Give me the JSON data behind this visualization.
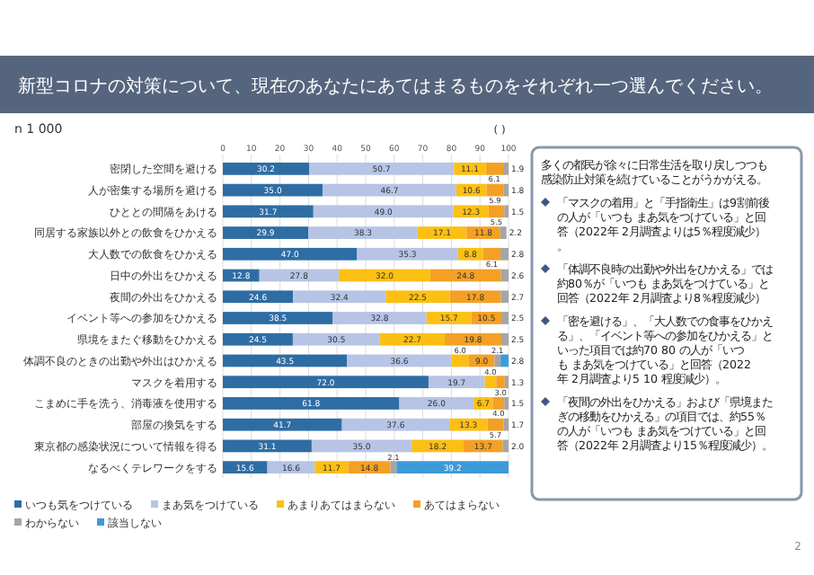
{
  "chart_data": {
    "type": "bar",
    "orientation": "horizontal",
    "stacked": true,
    "grid": "x",
    "legend": "bottom",
    "title": "新型コロナの対策について、現在のあなたにあてはまるものをそれぞれ一つ選んでください。",
    "subtitle": "n 1 000",
    "xlabel": "( )",
    "xlim": [
      0,
      100
    ],
    "xticks": [
      0,
      10,
      20,
      30,
      40,
      50,
      60,
      70,
      80,
      90,
      100
    ],
    "categories": [
      "密閉した空間を避ける",
      "人が密集する場所を避ける",
      "ひととの間隔をあける",
      "同居する家族以外との飲食をひかえる",
      "大人数での飲食をひかえる",
      "日中の外出をひかえる",
      "夜間の外出をひかえる",
      "イベント等への参加をひかえる",
      "県境をまたぐ移動をひかえる",
      "体調不良のときの出勤や外出はひかえる",
      "マスクを着用する",
      "こまめに手を洗う、消毒液を使用する",
      "部屋の換気をする",
      "東京都の感染状況について情報を得る",
      "なるべくテレワークをする"
    ],
    "series": [
      {
        "name": "いつも気をつけている",
        "color": "#2e6da4",
        "values": [
          30.2,
          35.0,
          31.7,
          29.9,
          47.0,
          12.8,
          24.6,
          38.5,
          24.5,
          43.5,
          72.0,
          61.8,
          41.7,
          31.1,
          15.6
        ],
        "value_labels": [
          "30.2",
          "35.0",
          "31.7",
          "29.9",
          "47.0",
          "12.8",
          "24.6",
          "38.5",
          "24.5",
          "43.5",
          "72.0",
          "61.8",
          "41.7",
          "31.1",
          "15.6"
        ]
      },
      {
        "name": "まあ気をつけている",
        "color": "#b7c4e6",
        "values": [
          50.7,
          46.7,
          49.0,
          38.3,
          35.3,
          27.8,
          32.4,
          32.8,
          30.5,
          36.6,
          19.7,
          26.0,
          37.6,
          35.0,
          16.6
        ],
        "value_labels": [
          "50.7",
          "46.7",
          "49.0",
          "38.3",
          "35.3",
          "27.8",
          "32.4",
          "32.8",
          "30.5",
          "36.6",
          "19.7",
          "26.0",
          "37.6",
          "35.0",
          "16.6"
        ]
      },
      {
        "name": "あまりあてはまらない",
        "color": "#fcbf14",
        "values": [
          11.1,
          10.6,
          12.3,
          17.1,
          8.8,
          32.0,
          22.5,
          15.7,
          22.7,
          6.0,
          4.0,
          6.7,
          13.3,
          18.2,
          11.7
        ],
        "value_labels": [
          "11.1",
          "10.6",
          "12.3",
          "17.1",
          "8.8",
          "32.0",
          "22.5",
          "15.7",
          "22.7",
          "6.0",
          "4.0",
          "6.7",
          "13.3",
          "18.2",
          "11.7"
        ]
      },
      {
        "name": "あてはまらない",
        "color": "#f4a024",
        "values": [
          6.1,
          5.9,
          5.5,
          11.8,
          6.1,
          24.8,
          17.8,
          10.5,
          19.8,
          9.0,
          3.0,
          4.0,
          5.7,
          13.7,
          14.8
        ],
        "value_labels": [
          "6.1",
          "5.9",
          "5.5",
          "11.8",
          "6.1",
          "24.8",
          "17.8",
          "10.5",
          "19.8",
          "9.0",
          "3.0",
          "4.0",
          "5.7",
          "13.7",
          "14.8"
        ]
      },
      {
        "name": "わからない",
        "color": "#a5a5a5",
        "values": [
          1.9,
          1.8,
          1.5,
          2.2,
          2.8,
          2.6,
          2.7,
          2.5,
          2.5,
          2.1,
          1.3,
          1.5,
          1.7,
          2.0,
          2.1
        ],
        "value_labels": [
          "1.9",
          "1.8",
          "1.5",
          "2.2",
          "2.8",
          "2.6",
          "2.7",
          "2.5",
          "2.5",
          "2.1",
          "1.3",
          "1.5",
          "1.7",
          "2.0",
          "2.1"
        ]
      },
      {
        "name": "該当しない",
        "color": "#3d9ad9",
        "values": [
          null,
          null,
          null,
          null,
          null,
          null,
          null,
          null,
          null,
          2.8,
          null,
          null,
          null,
          null,
          39.2
        ],
        "value_labels": [
          null,
          null,
          null,
          null,
          null,
          null,
          null,
          null,
          null,
          "2.8",
          null,
          null,
          null,
          null,
          "39.2"
        ]
      }
    ],
    "annotations": [
      "多くの都民が徐々に日常生活を取り戻しつつも感染防止対策を続けていることがうかがえる。",
      "「マスクの着用」と「手指衛生」は9割前後の人が「いつも まあ気をつけている」と回答（2022年 2月調査よりは5％程度減少）。",
      "「体調不良時の出勤や外出をひかえる」では約80％が「いつも まあ気をつけている」と回答（2022年 2月調査より8％程度減少）",
      "「密を避ける」、「大人数での食事をひかえる」、「イベント等への参加をひかえる」といった項目では約70 80 の人が「いつも まあ気をつけている」と回答（2022年 2月調査より5 10 程度減少）。",
      "「夜間の外出をひかえる」および「県境またぎの移動をひかえる」の項目では、約55％の人が「いつも まあ気をつけている」と回答（2022年 2月調査より15％程度減少）。",
      "2"
    ]
  }
}
